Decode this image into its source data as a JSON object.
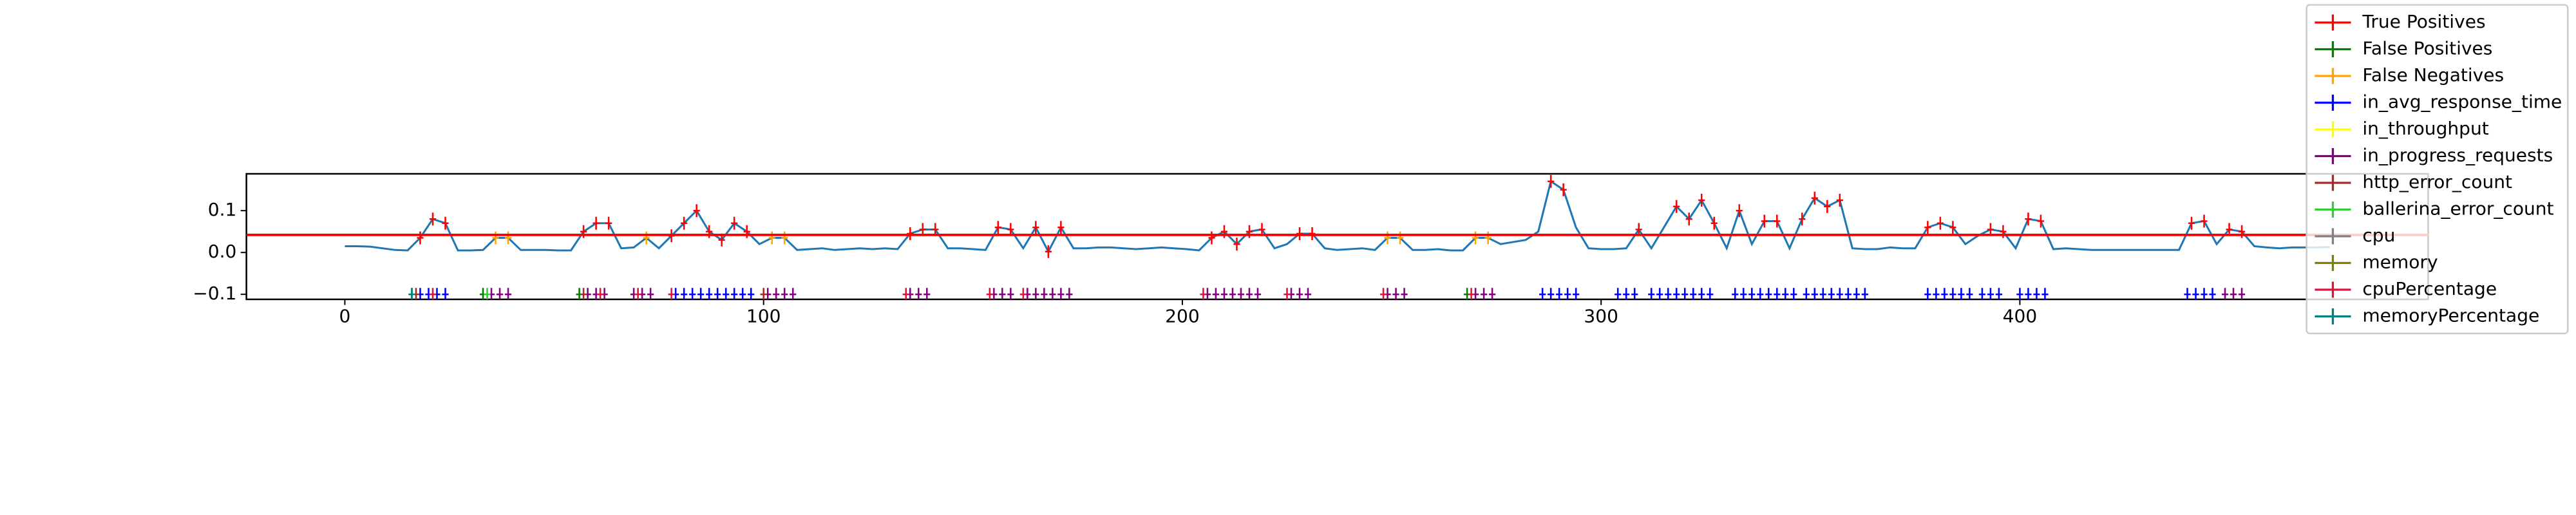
{
  "chart_data": {
    "type": "line",
    "xlim": [
      -23.5,
      497.5
    ],
    "ylim": [
      -0.112,
      0.188
    ],
    "xticks": [
      0,
      100,
      200,
      300,
      400
    ],
    "yticks": [
      {
        "value": -0.1,
        "label": "−0.1"
      },
      {
        "value": 0,
        "label": "0.0"
      },
      0.1
    ],
    "legend": "upper right",
    "threshold": 0.042,
    "threshold_color": "#ff0000",
    "line": {
      "color": "#1f77b4",
      "x": [
        0,
        3,
        6,
        9,
        12,
        15,
        18,
        21,
        24,
        27,
        30,
        33,
        36,
        39,
        42,
        45,
        48,
        51,
        54,
        57,
        60,
        63,
        66,
        69,
        72,
        75,
        78,
        81,
        84,
        87,
        90,
        93,
        96,
        99,
        102,
        105,
        108,
        111,
        114,
        117,
        120,
        123,
        126,
        129,
        132,
        135,
        138,
        141,
        144,
        147,
        150,
        153,
        156,
        159,
        162,
        165,
        168,
        171,
        174,
        177,
        180,
        183,
        186,
        189,
        192,
        195,
        198,
        201,
        204,
        207,
        210,
        213,
        216,
        219,
        222,
        225,
        228,
        231,
        234,
        237,
        240,
        243,
        246,
        249,
        252,
        255,
        258,
        261,
        264,
        267,
        270,
        273,
        276,
        279,
        282,
        285,
        288,
        291,
        294,
        297,
        300,
        303,
        306,
        309,
        312,
        315,
        318,
        321,
        324,
        327,
        330,
        333,
        336,
        339,
        342,
        345,
        348,
        351,
        354,
        357,
        360,
        363,
        366,
        369,
        372,
        375,
        378,
        381,
        384,
        387,
        390,
        393,
        396,
        399,
        402,
        405,
        408,
        411,
        414,
        417,
        420,
        423,
        426,
        429,
        432,
        435,
        438,
        441,
        444,
        447,
        450,
        453,
        456,
        459,
        462,
        465,
        468,
        471,
        474
      ],
      "values": [
        0.015,
        0.015,
        0.014,
        0.01,
        0.006,
        0.005,
        0.035,
        0.08,
        0.07,
        0.005,
        0.005,
        0.006,
        0.035,
        0.035,
        0.006,
        0.006,
        0.006,
        0.005,
        0.005,
        0.05,
        0.07,
        0.07,
        0.01,
        0.012,
        0.035,
        0.01,
        0.04,
        0.07,
        0.1,
        0.05,
        0.03,
        0.07,
        0.05,
        0.02,
        0.035,
        0.035,
        0.006,
        0.008,
        0.01,
        0.006,
        0.008,
        0.01,
        0.008,
        0.01,
        0.008,
        0.045,
        0.055,
        0.055,
        0.01,
        0.01,
        0.008,
        0.006,
        0.06,
        0.055,
        0.01,
        0.06,
        0.002,
        0.06,
        0.01,
        0.01,
        0.012,
        0.012,
        0.01,
        0.008,
        0.01,
        0.012,
        0.01,
        0.008,
        0.005,
        0.035,
        0.05,
        0.02,
        0.05,
        0.055,
        0.01,
        0.02,
        0.045,
        0.045,
        0.01,
        0.006,
        0.008,
        0.01,
        0.006,
        0.035,
        0.035,
        0.006,
        0.006,
        0.008,
        0.005,
        0.005,
        0.035,
        0.035,
        0.02,
        0.025,
        0.03,
        0.05,
        0.17,
        0.15,
        0.06,
        0.01,
        0.008,
        0.008,
        0.01,
        0.055,
        0.01,
        0.06,
        0.11,
        0.08,
        0.125,
        0.07,
        0.01,
        0.1,
        0.02,
        0.075,
        0.075,
        0.01,
        0.08,
        0.13,
        0.11,
        0.125,
        0.01,
        0.008,
        0.008,
        0.012,
        0.01,
        0.01,
        0.06,
        0.07,
        0.06,
        0.02,
        0.04,
        0.055,
        0.05,
        0.01,
        0.08,
        0.075,
        0.008,
        0.01,
        0.008,
        0.006,
        0.006,
        0.006,
        0.006,
        0.006,
        0.006,
        0.006,
        0.006,
        0.07,
        0.075,
        0.02,
        0.055,
        0.05,
        0.015,
        0.012,
        0.01,
        0.012,
        0.012,
        0.012,
        0.013
      ]
    },
    "series": [
      {
        "name": "True Positives",
        "color": "#ff0000",
        "x": [
          18,
          21,
          24,
          57,
          60,
          63,
          78,
          81,
          84,
          87,
          90,
          93,
          96,
          135,
          138,
          141,
          156,
          159,
          165,
          168,
          171,
          207,
          210,
          213,
          216,
          219,
          228,
          231,
          288,
          291,
          309,
          318,
          321,
          324,
          327,
          333,
          339,
          342,
          348,
          351,
          354,
          357,
          378,
          381,
          384,
          393,
          396,
          402,
          405,
          441,
          444,
          450,
          453
        ],
        "values": [
          0.035,
          0.08,
          0.07,
          0.05,
          0.07,
          0.07,
          0.04,
          0.07,
          0.1,
          0.05,
          0.03,
          0.07,
          0.05,
          0.045,
          0.055,
          0.055,
          0.06,
          0.055,
          0.06,
          0.002,
          0.06,
          0.035,
          0.05,
          0.02,
          0.05,
          0.055,
          0.045,
          0.045,
          0.17,
          0.15,
          0.055,
          0.11,
          0.08,
          0.125,
          0.07,
          0.1,
          0.075,
          0.075,
          0.08,
          0.13,
          0.11,
          0.125,
          0.06,
          0.07,
          0.06,
          0.055,
          0.05,
          0.08,
          0.075,
          0.07,
          0.075,
          0.055,
          0.05
        ]
      },
      {
        "name": "False Positives",
        "color": "#008000",
        "x": [
          16,
          33,
          56,
          268
        ],
        "values": [
          -0.1,
          -0.1,
          -0.1,
          -0.1
        ]
      },
      {
        "name": "False Negatives",
        "color": "#ffa500",
        "x": [
          36,
          39,
          72,
          102,
          105,
          249,
          252,
          270,
          273
        ],
        "values": [
          0.035,
          0.035,
          0.035,
          0.035,
          0.035,
          0.035,
          0.035,
          0.035,
          0.035
        ]
      },
      {
        "name": "in_avg_response_time",
        "color": "#0000ff",
        "x": [
          18,
          20,
          22,
          24,
          79,
          81,
          83,
          85,
          87,
          89,
          91,
          93,
          95,
          97,
          286,
          288,
          290,
          292,
          294,
          304,
          306,
          308,
          312,
          314,
          316,
          318,
          320,
          322,
          324,
          326,
          332,
          334,
          336,
          338,
          340,
          342,
          344,
          346,
          349,
          351,
          353,
          355,
          357,
          359,
          361,
          363,
          378,
          380,
          382,
          384,
          386,
          388,
          391,
          393,
          395,
          400,
          402,
          404,
          406,
          440,
          442,
          444,
          446
        ],
        "values": [
          -0.1,
          -0.1,
          -0.1,
          -0.1,
          -0.1,
          -0.1,
          -0.1,
          -0.1,
          -0.1,
          -0.1,
          -0.1,
          -0.1,
          -0.1,
          -0.1,
          -0.1,
          -0.1,
          -0.1,
          -0.1,
          -0.1,
          -0.1,
          -0.1,
          -0.1,
          -0.1,
          -0.1,
          -0.1,
          -0.1,
          -0.1,
          -0.1,
          -0.1,
          -0.1,
          -0.1,
          -0.1,
          -0.1,
          -0.1,
          -0.1,
          -0.1,
          -0.1,
          -0.1,
          -0.1,
          -0.1,
          -0.1,
          -0.1,
          -0.1,
          -0.1,
          -0.1,
          -0.1,
          -0.1,
          -0.1,
          -0.1,
          -0.1,
          -0.1,
          -0.1,
          -0.1,
          -0.1,
          -0.1,
          -0.1,
          -0.1,
          -0.1,
          -0.1,
          -0.1,
          -0.1,
          -0.1,
          -0.1
        ]
      },
      {
        "name": "in_throughput",
        "color": "#ffff00",
        "x": [],
        "values": []
      },
      {
        "name": "in_progress_requests",
        "color": "#800080",
        "x": [
          35,
          37,
          39,
          58,
          60,
          62,
          69,
          71,
          73,
          101,
          103,
          105,
          107,
          135,
          137,
          139,
          155,
          157,
          159,
          163,
          165,
          167,
          169,
          171,
          173,
          206,
          208,
          210,
          212,
          214,
          216,
          218,
          226,
          228,
          230,
          249,
          251,
          253,
          270,
          272,
          274,
          449,
          451,
          453
        ],
        "values": [
          -0.1,
          -0.1,
          -0.1,
          -0.1,
          -0.1,
          -0.1,
          -0.1,
          -0.1,
          -0.1,
          -0.1,
          -0.1,
          -0.1,
          -0.1,
          -0.1,
          -0.1,
          -0.1,
          -0.1,
          -0.1,
          -0.1,
          -0.1,
          -0.1,
          -0.1,
          -0.1,
          -0.1,
          -0.1,
          -0.1,
          -0.1,
          -0.1,
          -0.1,
          -0.1,
          -0.1,
          -0.1,
          -0.1,
          -0.1,
          -0.1,
          -0.1,
          -0.1,
          -0.1,
          -0.1,
          -0.1,
          -0.1,
          -0.1,
          -0.1,
          -0.1
        ]
      },
      {
        "name": "http_error_count",
        "color": "#a52a2a",
        "x": [
          17,
          57,
          100
        ],
        "values": [
          -0.1,
          -0.1,
          -0.1
        ]
      },
      {
        "name": "ballerina_error_count",
        "color": "#32cd32",
        "x": [
          34
        ],
        "values": [
          -0.1
        ]
      },
      {
        "name": "cpu",
        "color": "#808080",
        "x": [],
        "values": []
      },
      {
        "name": "memory",
        "color": "#808000",
        "x": [],
        "values": []
      },
      {
        "name": "cpuPercentage",
        "color": "#dc143c",
        "x": [
          21,
          61,
          70,
          78,
          134,
          154,
          162,
          205,
          225,
          248,
          269
        ],
        "values": [
          -0.1,
          -0.1,
          -0.1,
          -0.1,
          -0.1,
          -0.1,
          -0.1,
          -0.1,
          -0.1,
          -0.1,
          -0.1
        ]
      },
      {
        "name": "memoryPercentage",
        "color": "#008080",
        "x": [
          16
        ],
        "values": [
          -0.1
        ]
      }
    ]
  }
}
